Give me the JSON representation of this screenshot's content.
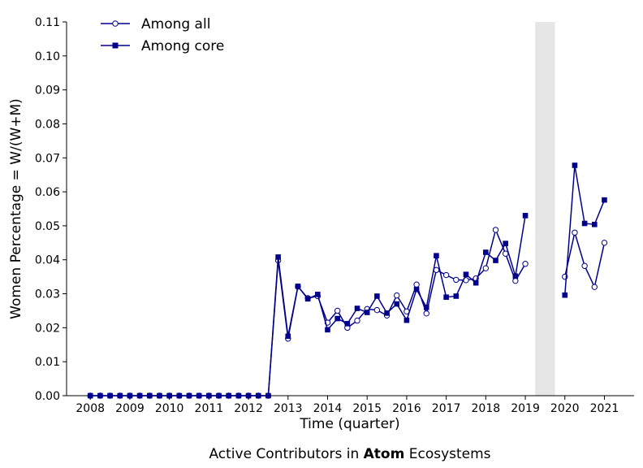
{
  "chart_data": {
    "type": "line",
    "xlabel": "Time (quarter)",
    "ylabel": "Women Percentage = W/(W+M)",
    "caption": {
      "prefix": "Active Contributors in ",
      "bold": "Atom",
      "suffix": " Ecosystems"
    },
    "xlim": [
      2007.4,
      2021.75
    ],
    "ylim": [
      0,
      0.11
    ],
    "x_ticks": [
      2008,
      2009,
      2010,
      2011,
      2012,
      2013,
      2014,
      2015,
      2016,
      2017,
      2018,
      2019,
      2020,
      2021
    ],
    "x_tick_labels": [
      "2008",
      "2009",
      "2010",
      "2011",
      "2012",
      "2013",
      "2014",
      "2015",
      "2016",
      "2017",
      "2018",
      "2019",
      "2020",
      "2021"
    ],
    "y_ticks": [
      0.0,
      0.01,
      0.02,
      0.03,
      0.04,
      0.05,
      0.06,
      0.07,
      0.08,
      0.09,
      0.1,
      0.11
    ],
    "y_tick_labels": [
      "0.00",
      "0.01",
      "0.02",
      "0.03",
      "0.04",
      "0.05",
      "0.06",
      "0.07",
      "0.08",
      "0.09",
      "0.10",
      "0.11"
    ],
    "grid": false,
    "legend_position": "top-left",
    "shaded_region": {
      "x": [
        2019.25,
        2019.75
      ],
      "color": "#e6e6e6"
    },
    "colors": {
      "line": "#00008b"
    },
    "series": [
      {
        "name": "Among all",
        "marker": "circle-open",
        "segments": [
          {
            "x": [
              2008.0,
              2008.25,
              2008.5,
              2008.75,
              2009.0,
              2009.25,
              2009.5,
              2009.75,
              2010.0,
              2010.25,
              2010.5,
              2010.75,
              2011.0,
              2011.25,
              2011.5,
              2011.75,
              2012.0,
              2012.25,
              2012.5,
              2012.75,
              2013.0,
              2013.25,
              2013.5,
              2013.75,
              2014.0,
              2014.25,
              2014.5,
              2014.75,
              2015.0,
              2015.25,
              2015.5,
              2015.75,
              2016.0,
              2016.25,
              2016.5,
              2016.75,
              2017.0,
              2017.25,
              2017.5,
              2017.75,
              2018.0,
              2018.25,
              2018.5,
              2018.75,
              2019.0
            ],
            "y": [
              0,
              0,
              0,
              0,
              0,
              0,
              0,
              0,
              0,
              0,
              0,
              0,
              0,
              0,
              0,
              0,
              0,
              0,
              0,
              0.0398,
              0.0168,
              0.0321,
              0.0287,
              0.0293,
              0.0215,
              0.025,
              0.02,
              0.0221,
              0.0255,
              0.0252,
              0.0236,
              0.0295,
              0.0248,
              0.0327,
              0.0242,
              0.037,
              0.0355,
              0.0341,
              0.034,
              0.0345,
              0.0375,
              0.0488,
              0.0418,
              0.0338,
              0.0388
            ]
          },
          {
            "x": [
              2020.0,
              2020.25,
              2020.5,
              2020.75,
              2021.0
            ],
            "y": [
              0.035,
              0.048,
              0.0382,
              0.032,
              0.045
            ]
          }
        ]
      },
      {
        "name": "Among core",
        "marker": "square-filled",
        "segments": [
          {
            "x": [
              2008.0,
              2008.25,
              2008.5,
              2008.75,
              2009.0,
              2009.25,
              2009.5,
              2009.75,
              2010.0,
              2010.25,
              2010.5,
              2010.75,
              2011.0,
              2011.25,
              2011.5,
              2011.75,
              2012.0,
              2012.25,
              2012.5,
              2012.75,
              2013.0,
              2013.25,
              2013.5,
              2013.75,
              2014.0,
              2014.25,
              2014.5,
              2014.75,
              2015.0,
              2015.25,
              2015.5,
              2015.75,
              2016.0,
              2016.25,
              2016.5,
              2016.75,
              2017.0,
              2017.25,
              2017.5,
              2017.75,
              2018.0,
              2018.25,
              2018.5,
              2018.75,
              2019.0
            ],
            "y": [
              0,
              0,
              0,
              0,
              0,
              0,
              0,
              0,
              0,
              0,
              0,
              0,
              0,
              0,
              0,
              0,
              0,
              0,
              0,
              0.0408,
              0.0175,
              0.0322,
              0.0285,
              0.0298,
              0.0194,
              0.0227,
              0.0212,
              0.0257,
              0.0245,
              0.0293,
              0.0243,
              0.027,
              0.0222,
              0.0313,
              0.026,
              0.0412,
              0.029,
              0.0293,
              0.0357,
              0.0332,
              0.0422,
              0.0398,
              0.0448,
              0.0352,
              0.053
            ]
          },
          {
            "x": [
              2020.0,
              2020.25,
              2020.5,
              2020.75,
              2021.0
            ],
            "y": [
              0.0296,
              0.0678,
              0.0507,
              0.0504,
              0.0576
            ]
          }
        ]
      }
    ]
  }
}
